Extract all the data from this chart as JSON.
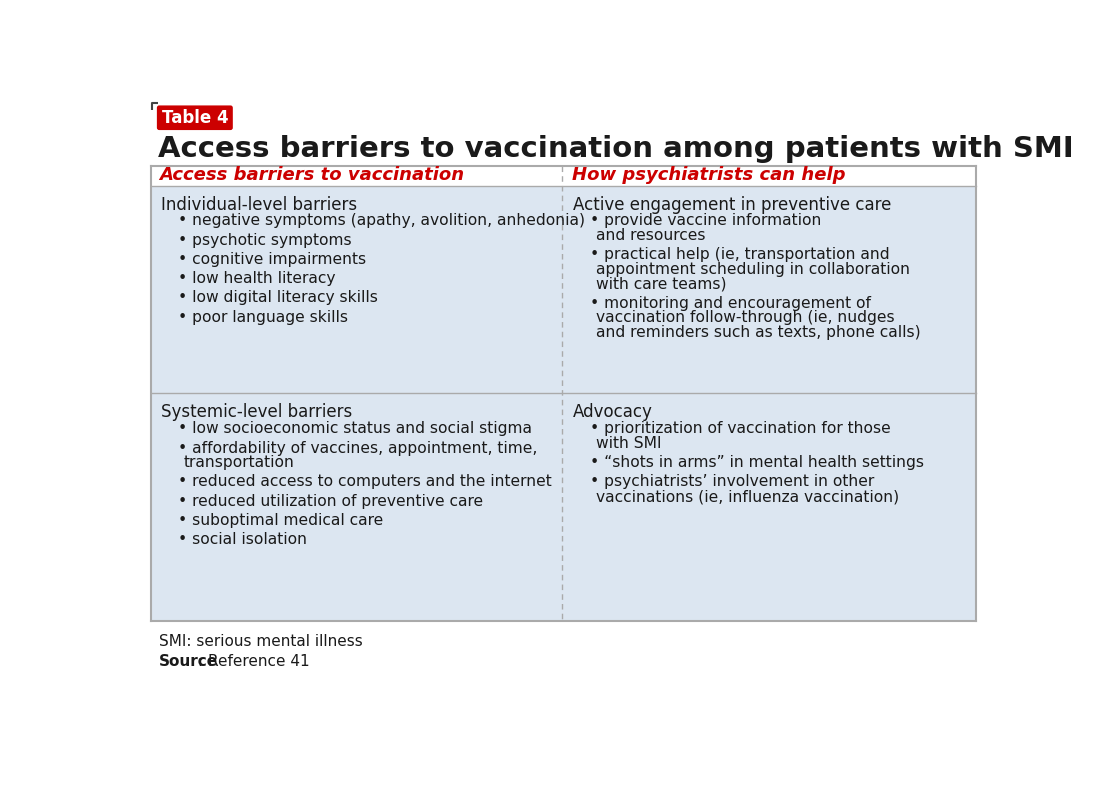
{
  "title": "Access barriers to vaccination among patients with SMI",
  "table_label": "Table 4",
  "col_headers": [
    "Access barriers to vaccination",
    "How psychiatrists can help"
  ],
  "header_color": "#cc0000",
  "table_bg": "#dce6f1",
  "outer_bg": "#ffffff",
  "row1_left_header": "Individual-level barriers",
  "row1_left_bullets": [
    "negative symptoms (apathy, avolition, anhedonia)",
    "psychotic symptoms",
    "cognitive impairments",
    "low health literacy",
    "low digital literacy skills",
    "poor language skills"
  ],
  "row1_right_header": "Active engagement in preventive care",
  "row1_right_bullets": [
    [
      "provide vaccine information",
      "and resources"
    ],
    [
      "practical help (ie, transportation and",
      "appointment scheduling in collaboration",
      "with care teams)"
    ],
    [
      "monitoring and encouragement of",
      "vaccination follow-through (ie, nudges",
      "and reminders such as texts, phone calls)"
    ]
  ],
  "row2_left_header": "Systemic-level barriers",
  "row2_left_bullets": [
    [
      "low socioeconomic status and social stigma"
    ],
    [
      "affordability of vaccines, appointment, time,",
      "transportation"
    ],
    [
      "reduced access to computers and the internet"
    ],
    [
      "reduced utilization of preventive care"
    ],
    [
      "suboptimal medical care"
    ],
    [
      "social isolation"
    ]
  ],
  "row2_right_header": "Advocacy",
  "row2_right_bullets": [
    [
      "prioritization of vaccination for those",
      "with SMI"
    ],
    [
      "“shots in arms” in mental health settings"
    ],
    [
      "psychiatrists’ involvement in other",
      "vaccinations (ie, influenza vaccination)"
    ]
  ],
  "footer_line1": "SMI: serious mental illness",
  "footer_line2_bold": "Source",
  "footer_line2_rest": ": Reference 41"
}
